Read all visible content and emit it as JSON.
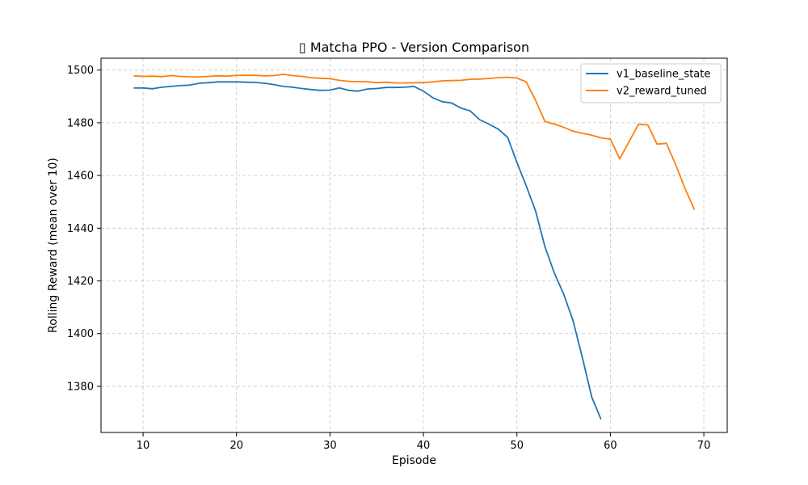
{
  "chart_data": {
    "type": "line",
    "title": "▯ Matcha PPO - Version Comparison",
    "xlabel": "Episode",
    "ylabel": "Rolling Reward (mean over 10)",
    "xlim": [
      5.5,
      72.5
    ],
    "ylim": [
      1362.5,
      1504.5
    ],
    "xticks": [
      10,
      20,
      30,
      40,
      50,
      60,
      70
    ],
    "yticks": [
      1380,
      1400,
      1420,
      1440,
      1460,
      1480,
      1500
    ],
    "grid": true,
    "legend_position": "top-right",
    "series": [
      {
        "name": "v1_baseline_state",
        "color": "#1f77b4",
        "points": [
          [
            9,
            1493.2
          ],
          [
            10,
            1493.2
          ],
          [
            11,
            1492.9
          ],
          [
            12,
            1493.5
          ],
          [
            13,
            1493.8
          ],
          [
            14,
            1494.1
          ],
          [
            15,
            1494.3
          ],
          [
            16,
            1495.0
          ],
          [
            17,
            1495.2
          ],
          [
            18,
            1495.5
          ],
          [
            19,
            1495.5
          ],
          [
            20,
            1495.5
          ],
          [
            21,
            1495.4
          ],
          [
            22,
            1495.3
          ],
          [
            23,
            1495.0
          ],
          [
            24,
            1494.5
          ],
          [
            25,
            1493.8
          ],
          [
            26,
            1493.5
          ],
          [
            27,
            1493.0
          ],
          [
            28,
            1492.6
          ],
          [
            29,
            1492.3
          ],
          [
            30,
            1492.4
          ],
          [
            31,
            1493.2
          ],
          [
            32,
            1492.3
          ],
          [
            33,
            1492.0
          ],
          [
            34,
            1492.8
          ],
          [
            35,
            1493.0
          ],
          [
            36,
            1493.4
          ],
          [
            37,
            1493.4
          ],
          [
            38,
            1493.5
          ],
          [
            39,
            1493.8
          ],
          [
            40,
            1492.0
          ],
          [
            41,
            1489.5
          ],
          [
            42,
            1488.0
          ],
          [
            43,
            1487.5
          ],
          [
            44,
            1485.6
          ],
          [
            45,
            1484.5
          ],
          [
            46,
            1481.2
          ],
          [
            47,
            1479.5
          ],
          [
            48,
            1477.6
          ],
          [
            49,
            1474.5
          ],
          [
            50,
            1465.0
          ],
          [
            51,
            1456.0
          ],
          [
            52,
            1446.5
          ],
          [
            53,
            1433.0
          ],
          [
            54,
            1423.0
          ],
          [
            55,
            1415.0
          ],
          [
            56,
            1405.0
          ],
          [
            57,
            1391.0
          ],
          [
            58,
            1376.0
          ],
          [
            59,
            1367.5
          ]
        ]
      },
      {
        "name": "v2_reward_tuned",
        "color": "#ff7f0e",
        "points": [
          [
            9,
            1497.8
          ],
          [
            10,
            1497.6
          ],
          [
            11,
            1497.7
          ],
          [
            12,
            1497.5
          ],
          [
            13,
            1497.9
          ],
          [
            14,
            1497.6
          ],
          [
            15,
            1497.4
          ],
          [
            16,
            1497.4
          ],
          [
            17,
            1497.6
          ],
          [
            18,
            1497.8
          ],
          [
            19,
            1497.7
          ],
          [
            20,
            1498.0
          ],
          [
            21,
            1498.0
          ],
          [
            22,
            1498.0
          ],
          [
            23,
            1497.8
          ],
          [
            24,
            1497.9
          ],
          [
            25,
            1498.4
          ],
          [
            26,
            1497.9
          ],
          [
            27,
            1497.6
          ],
          [
            28,
            1497.1
          ],
          [
            29,
            1496.9
          ],
          [
            30,
            1496.7
          ],
          [
            31,
            1496.1
          ],
          [
            32,
            1495.7
          ],
          [
            33,
            1495.6
          ],
          [
            34,
            1495.6
          ],
          [
            35,
            1495.2
          ],
          [
            36,
            1495.4
          ],
          [
            37,
            1495.1
          ],
          [
            38,
            1495.1
          ],
          [
            39,
            1495.2
          ],
          [
            40,
            1495.2
          ],
          [
            41,
            1495.5
          ],
          [
            42,
            1495.9
          ],
          [
            43,
            1496.0
          ],
          [
            44,
            1496.1
          ],
          [
            45,
            1496.5
          ],
          [
            46,
            1496.6
          ],
          [
            47,
            1496.8
          ],
          [
            48,
            1497.1
          ],
          [
            49,
            1497.3
          ],
          [
            50,
            1497.0
          ],
          [
            51,
            1495.5
          ],
          [
            52,
            1488.5
          ],
          [
            53,
            1480.5
          ],
          [
            54,
            1479.5
          ],
          [
            55,
            1478.3
          ],
          [
            56,
            1476.8
          ],
          [
            57,
            1476.0
          ],
          [
            58,
            1475.3
          ],
          [
            59,
            1474.3
          ],
          [
            60,
            1473.8
          ],
          [
            61,
            1466.3
          ],
          [
            62,
            1472.8
          ],
          [
            63,
            1479.4
          ],
          [
            64,
            1479.2
          ],
          [
            65,
            1471.9
          ],
          [
            66,
            1472.2
          ],
          [
            67,
            1464.0
          ],
          [
            68,
            1455.0
          ],
          [
            69,
            1447.0
          ]
        ]
      }
    ]
  }
}
